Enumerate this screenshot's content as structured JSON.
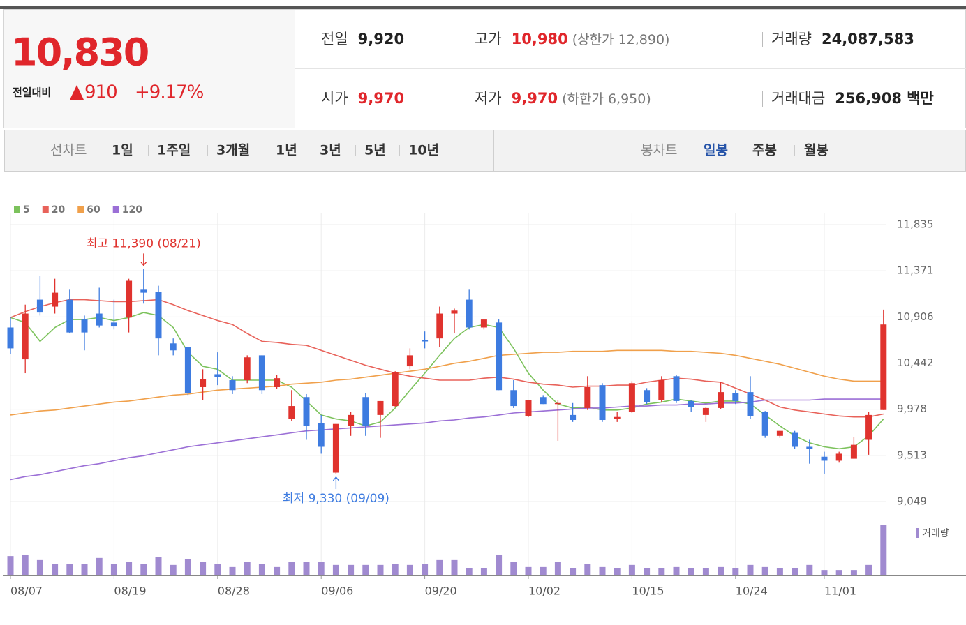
{
  "quote": {
    "price": "10,830",
    "change_label": "전일대비",
    "change": "910",
    "change_rate": "+9.17%",
    "info": [
      {
        "label": "전일",
        "value": "9,920",
        "color": "#222222"
      },
      {
        "label": "고가",
        "value": "10,980",
        "note": "(상한가 12,890)",
        "color": "#e0262b"
      },
      {
        "label": "거래량",
        "value": "24,087,583",
        "color": "#222222"
      },
      {
        "label": "시가",
        "value": "9,970",
        "color": "#e0262b"
      },
      {
        "label": "저가",
        "value": "9,970",
        "note": "(하한가 6,950)",
        "color": "#e0262b"
      },
      {
        "label": "거래대금",
        "value": "256,908 백만",
        "color": "#222222"
      }
    ]
  },
  "nav": {
    "line": {
      "label": "선차트",
      "periods": [
        "1일",
        "1주일",
        "3개월",
        "1년",
        "3년",
        "5년",
        "10년"
      ]
    },
    "candle": {
      "label": "봉차트",
      "periods": [
        "일봉",
        "주봉",
        "월봉"
      ],
      "active": 0
    }
  },
  "chart_data": {
    "type": "candlestick",
    "categories": [
      "08/07",
      null,
      null,
      null,
      null,
      null,
      null,
      "08/19",
      null,
      null,
      null,
      null,
      null,
      null,
      "08/28",
      null,
      null,
      null,
      null,
      null,
      null,
      "09/06",
      null,
      null,
      null,
      null,
      null,
      null,
      "09/20",
      null,
      null,
      null,
      null,
      null,
      null,
      "10/02",
      null,
      null,
      null,
      null,
      null,
      null,
      "10/15",
      null,
      null,
      null,
      null,
      null,
      null,
      "10/24",
      null,
      null,
      null,
      null,
      null,
      "11/01",
      null,
      null,
      null,
      null
    ],
    "open": [
      10800,
      10480,
      11080,
      11010,
      11080,
      10880,
      10940,
      10850,
      10900,
      11180,
      11160,
      10640,
      10600,
      10200,
      10330,
      10270,
      10270,
      10520,
      10200,
      9880,
      10100,
      9840,
      9340,
      9810,
      10100,
      9920,
      10010,
      10410,
      10670,
      10690,
      10940,
      11080,
      10800,
      10850,
      10170,
      9910,
      10100,
      10030,
      9920,
      9990,
      10220,
      9880,
      9950,
      10170,
      10070,
      10310,
      10060,
      9920,
      9990,
      10140,
      10150,
      9950,
      9710,
      9740,
      9600,
      9500,
      9460,
      9480,
      9670,
      9970
    ],
    "high": [
      10900,
      11030,
      11320,
      11290,
      11180,
      10920,
      11200,
      11080,
      11290,
      11390,
      11220,
      10690,
      10600,
      10380,
      10550,
      10310,
      10520,
      10520,
      10320,
      10170,
      10130,
      9920,
      9830,
      9950,
      10140,
      10060,
      10360,
      10590,
      10760,
      11010,
      10990,
      11180,
      10880,
      10880,
      10270,
      10070,
      10120,
      10070,
      10040,
      10310,
      10240,
      9950,
      10260,
      10190,
      10310,
      10320,
      10070,
      10000,
      10250,
      10170,
      10310,
      9960,
      9760,
      9760,
      9670,
      9550,
      9550,
      9700,
      9950,
      10980
    ],
    "low": [
      10530,
      10340,
      10920,
      10940,
      10740,
      10570,
      10800,
      10780,
      10750,
      11040,
      10520,
      10520,
      10120,
      10070,
      10220,
      10130,
      10240,
      10130,
      10180,
      9860,
      9670,
      9530,
      9330,
      9710,
      9710,
      9690,
      10000,
      10380,
      10590,
      10600,
      10740,
      10780,
      10780,
      10170,
      9990,
      9900,
      10030,
      9660,
      9850,
      9970,
      9850,
      9850,
      9940,
      10030,
      10050,
      10040,
      9950,
      9850,
      9980,
      10030,
      9880,
      9690,
      9690,
      9580,
      9430,
      9330,
      9440,
      9480,
      9520,
      9970
    ],
    "close": [
      10590,
      10940,
      10950,
      11150,
      10750,
      10750,
      10820,
      10810,
      11270,
      11150,
      10690,
      10570,
      10140,
      10280,
      10300,
      10170,
      10500,
      10170,
      10290,
      10010,
      9810,
      9600,
      9830,
      9920,
      9810,
      10060,
      10350,
      10520,
      10660,
      10940,
      10970,
      10800,
      10880,
      10170,
      10010,
      10070,
      10030,
      10040,
      9870,
      10200,
      9870,
      9900,
      10240,
      10050,
      10270,
      10060,
      10000,
      9990,
      10150,
      10060,
      9910,
      9710,
      9760,
      9600,
      9580,
      9460,
      9530,
      9620,
      9920,
      10830
    ],
    "up_color": "#e0332e",
    "down_color": "#3d7be0",
    "ylim": [
      9049,
      11835
    ],
    "yticks": [
      {
        "value": 9049,
        "label": "9,049"
      },
      {
        "value": 9513,
        "label": "9,513"
      },
      {
        "value": 9978,
        "label": "9,978"
      },
      {
        "value": 10442,
        "label": "10,442"
      },
      {
        "value": 10906,
        "label": "10,906"
      },
      {
        "value": 11371,
        "label": "11,371"
      },
      {
        "value": 11835,
        "label": "11,835"
      }
    ],
    "grid": true,
    "series": [
      {
        "name": "5",
        "color": "#7cc25c",
        "values": [
          10900,
          10850,
          10660,
          10800,
          10880,
          10880,
          10900,
          10870,
          10900,
          10950,
          10920,
          10800,
          10550,
          10410,
          10380,
          10270,
          10270,
          10270,
          10270,
          10200,
          10060,
          9920,
          9880,
          9860,
          9810,
          9850,
          9990,
          10170,
          10340,
          10520,
          10690,
          10800,
          10830,
          10800,
          10590,
          10340,
          10170,
          10030,
          9990,
          10000,
          9970,
          9970,
          9990,
          10030,
          10050,
          10080,
          10060,
          10040,
          10060,
          10060,
          10030,
          9920,
          9810,
          9710,
          9640,
          9600,
          9580,
          9600,
          9710,
          9880
        ]
      },
      {
        "name": "20",
        "color": "#e8625a",
        "values": [
          10900,
          10960,
          11010,
          11050,
          11080,
          11080,
          11070,
          11060,
          11060,
          11070,
          11080,
          11030,
          10970,
          10920,
          10870,
          10830,
          10740,
          10660,
          10650,
          10630,
          10620,
          10570,
          10520,
          10470,
          10420,
          10380,
          10340,
          10310,
          10290,
          10270,
          10270,
          10270,
          10290,
          10300,
          10280,
          10250,
          10230,
          10220,
          10200,
          10210,
          10210,
          10220,
          10220,
          10250,
          10270,
          10290,
          10280,
          10260,
          10250,
          10190,
          10130,
          10070,
          10000,
          9970,
          9950,
          9930,
          9910,
          9900,
          9900,
          9930
        ]
      },
      {
        "name": "60",
        "color": "#f0a04b",
        "values": [
          9920,
          9940,
          9960,
          9970,
          9990,
          10010,
          10030,
          10050,
          10060,
          10080,
          10100,
          10120,
          10130,
          10150,
          10170,
          10180,
          10190,
          10200,
          10210,
          10230,
          10240,
          10250,
          10270,
          10280,
          10300,
          10320,
          10340,
          10360,
          10380,
          10410,
          10440,
          10460,
          10490,
          10520,
          10530,
          10540,
          10550,
          10550,
          10560,
          10560,
          10560,
          10570,
          10570,
          10570,
          10570,
          10560,
          10560,
          10550,
          10540,
          10520,
          10490,
          10460,
          10430,
          10390,
          10350,
          10310,
          10280,
          10260,
          10260,
          10260
        ]
      },
      {
        "name": "120",
        "color": "#9b6fd6",
        "values": [
          9270,
          9300,
          9320,
          9350,
          9380,
          9410,
          9430,
          9460,
          9490,
          9510,
          9540,
          9570,
          9600,
          9620,
          9640,
          9660,
          9680,
          9700,
          9720,
          9740,
          9760,
          9770,
          9780,
          9790,
          9800,
          9810,
          9820,
          9830,
          9840,
          9860,
          9870,
          9890,
          9900,
          9920,
          9940,
          9950,
          9960,
          9970,
          9980,
          9990,
          9990,
          10000,
          10010,
          10010,
          10020,
          10020,
          10030,
          10030,
          10040,
          10040,
          10050,
          10070,
          10070,
          10070,
          10070,
          10080,
          10080,
          10080,
          10080,
          10080
        ]
      }
    ],
    "volume": {
      "name": "거래량",
      "color": "#a08ad0",
      "values": [
        9200000,
        9900000,
        7300000,
        5600000,
        5600000,
        5600000,
        8300000,
        5600000,
        6600000,
        5600000,
        8900000,
        5000000,
        7600000,
        6600000,
        5600000,
        4000000,
        6600000,
        5600000,
        4000000,
        6600000,
        6600000,
        6600000,
        5000000,
        5000000,
        5000000,
        5000000,
        5600000,
        5000000,
        5600000,
        7300000,
        7300000,
        3300000,
        3300000,
        9900000,
        6600000,
        4000000,
        4000000,
        6600000,
        3300000,
        5600000,
        4000000,
        3300000,
        5000000,
        3300000,
        3300000,
        4000000,
        3300000,
        3300000,
        4000000,
        3300000,
        5000000,
        4000000,
        3300000,
        3300000,
        5000000,
        2600000,
        2600000,
        2600000,
        5000000,
        24087583
      ]
    },
    "annotations": {
      "high": "최고 11,390 (08/21)",
      "low": "최저 9,330 (09/09)"
    }
  }
}
